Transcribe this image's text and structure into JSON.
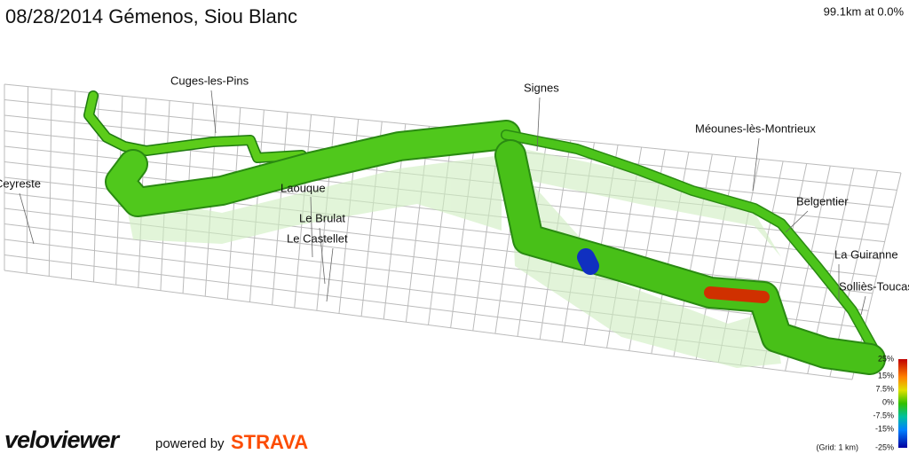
{
  "header": {
    "title": "08/28/2014 Gémenos, Siou Blanc",
    "status": "99.1km at 0.0%"
  },
  "places": [
    {
      "label": "Cuges-les-Pins"
    },
    {
      "label": "Signes"
    },
    {
      "label": "Méounes-lès-Montrieux"
    },
    {
      "label": "Ceyreste"
    },
    {
      "label": "Laouque"
    },
    {
      "label": "Belgentier"
    },
    {
      "label": "Le Brulat"
    },
    {
      "label": "Le Castellet"
    },
    {
      "label": "La Guiranne"
    },
    {
      "label": "Solliès-Toucas"
    }
  ],
  "legend": {
    "labels": [
      "25%",
      "15%",
      "7.5%",
      "0%",
      "-7.5%",
      "-15%",
      "-25%"
    ],
    "grid_note": "(Grid: 1 km)"
  },
  "footer": {
    "logo": "veloviewer",
    "powered_by": "powered by",
    "brand": "STRAVA"
  }
}
